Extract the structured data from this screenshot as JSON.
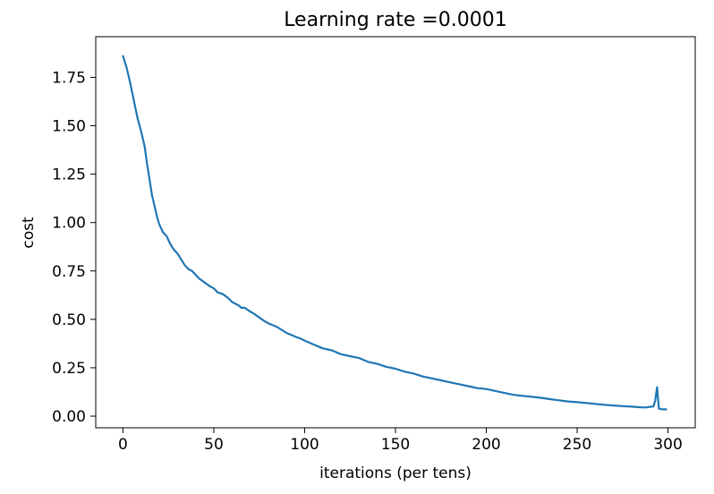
{
  "chart_data": {
    "type": "line",
    "title": "Learning rate =0.0001",
    "xlabel": "iterations (per tens)",
    "ylabel": "cost",
    "xlim": [
      -15,
      315
    ],
    "ylim": [
      -0.06,
      1.96
    ],
    "xticks": [
      0,
      50,
      100,
      150,
      200,
      250,
      300
    ],
    "xtick_labels": [
      "0",
      "50",
      "100",
      "150",
      "200",
      "250",
      "300"
    ],
    "yticks": [
      0.0,
      0.25,
      0.5,
      0.75,
      1.0,
      1.25,
      1.5,
      1.75
    ],
    "ytick_labels": [
      "0.00",
      "0.25",
      "0.50",
      "0.75",
      "1.00",
      "1.25",
      "1.50",
      "1.75"
    ],
    "grid": false,
    "line_color": "#1f77b4",
    "series": [
      {
        "x": [
          0,
          2,
          4,
          6,
          8,
          10,
          12,
          13,
          15,
          16,
          17,
          18,
          19,
          20,
          22,
          24,
          26,
          28,
          30,
          32,
          34,
          36,
          38,
          40,
          42,
          45,
          48,
          50,
          52,
          55,
          58,
          60,
          62,
          64,
          65,
          67,
          70,
          72,
          75,
          78,
          80,
          85,
          90,
          95,
          98,
          100,
          105,
          110,
          115,
          120,
          125,
          130,
          135,
          140,
          145,
          150,
          155,
          160,
          165,
          170,
          175,
          180,
          185,
          190,
          195,
          200,
          205,
          210,
          215,
          220,
          225,
          230,
          235,
          240,
          245,
          250,
          255,
          260,
          265,
          270,
          275,
          280,
          285,
          288,
          290,
          292,
          293,
          294,
          295,
          296,
          298,
          299
        ],
        "y": [
          1.86,
          1.8,
          1.72,
          1.63,
          1.54,
          1.47,
          1.39,
          1.32,
          1.2,
          1.14,
          1.1,
          1.06,
          1.02,
          0.99,
          0.95,
          0.93,
          0.89,
          0.86,
          0.84,
          0.81,
          0.78,
          0.76,
          0.75,
          0.73,
          0.71,
          0.69,
          0.67,
          0.66,
          0.64,
          0.63,
          0.61,
          0.59,
          0.58,
          0.57,
          0.56,
          0.56,
          0.54,
          0.53,
          0.51,
          0.49,
          0.48,
          0.46,
          0.43,
          0.41,
          0.4,
          0.39,
          0.37,
          0.35,
          0.34,
          0.32,
          0.31,
          0.3,
          0.28,
          0.27,
          0.255,
          0.245,
          0.23,
          0.22,
          0.205,
          0.195,
          0.185,
          0.175,
          0.165,
          0.155,
          0.145,
          0.14,
          0.13,
          0.12,
          0.11,
          0.105,
          0.1,
          0.095,
          0.088,
          0.082,
          0.076,
          0.072,
          0.068,
          0.063,
          0.059,
          0.055,
          0.052,
          0.049,
          0.046,
          0.045,
          0.048,
          0.05,
          0.08,
          0.15,
          0.04,
          0.036,
          0.035,
          0.035
        ]
      }
    ]
  }
}
